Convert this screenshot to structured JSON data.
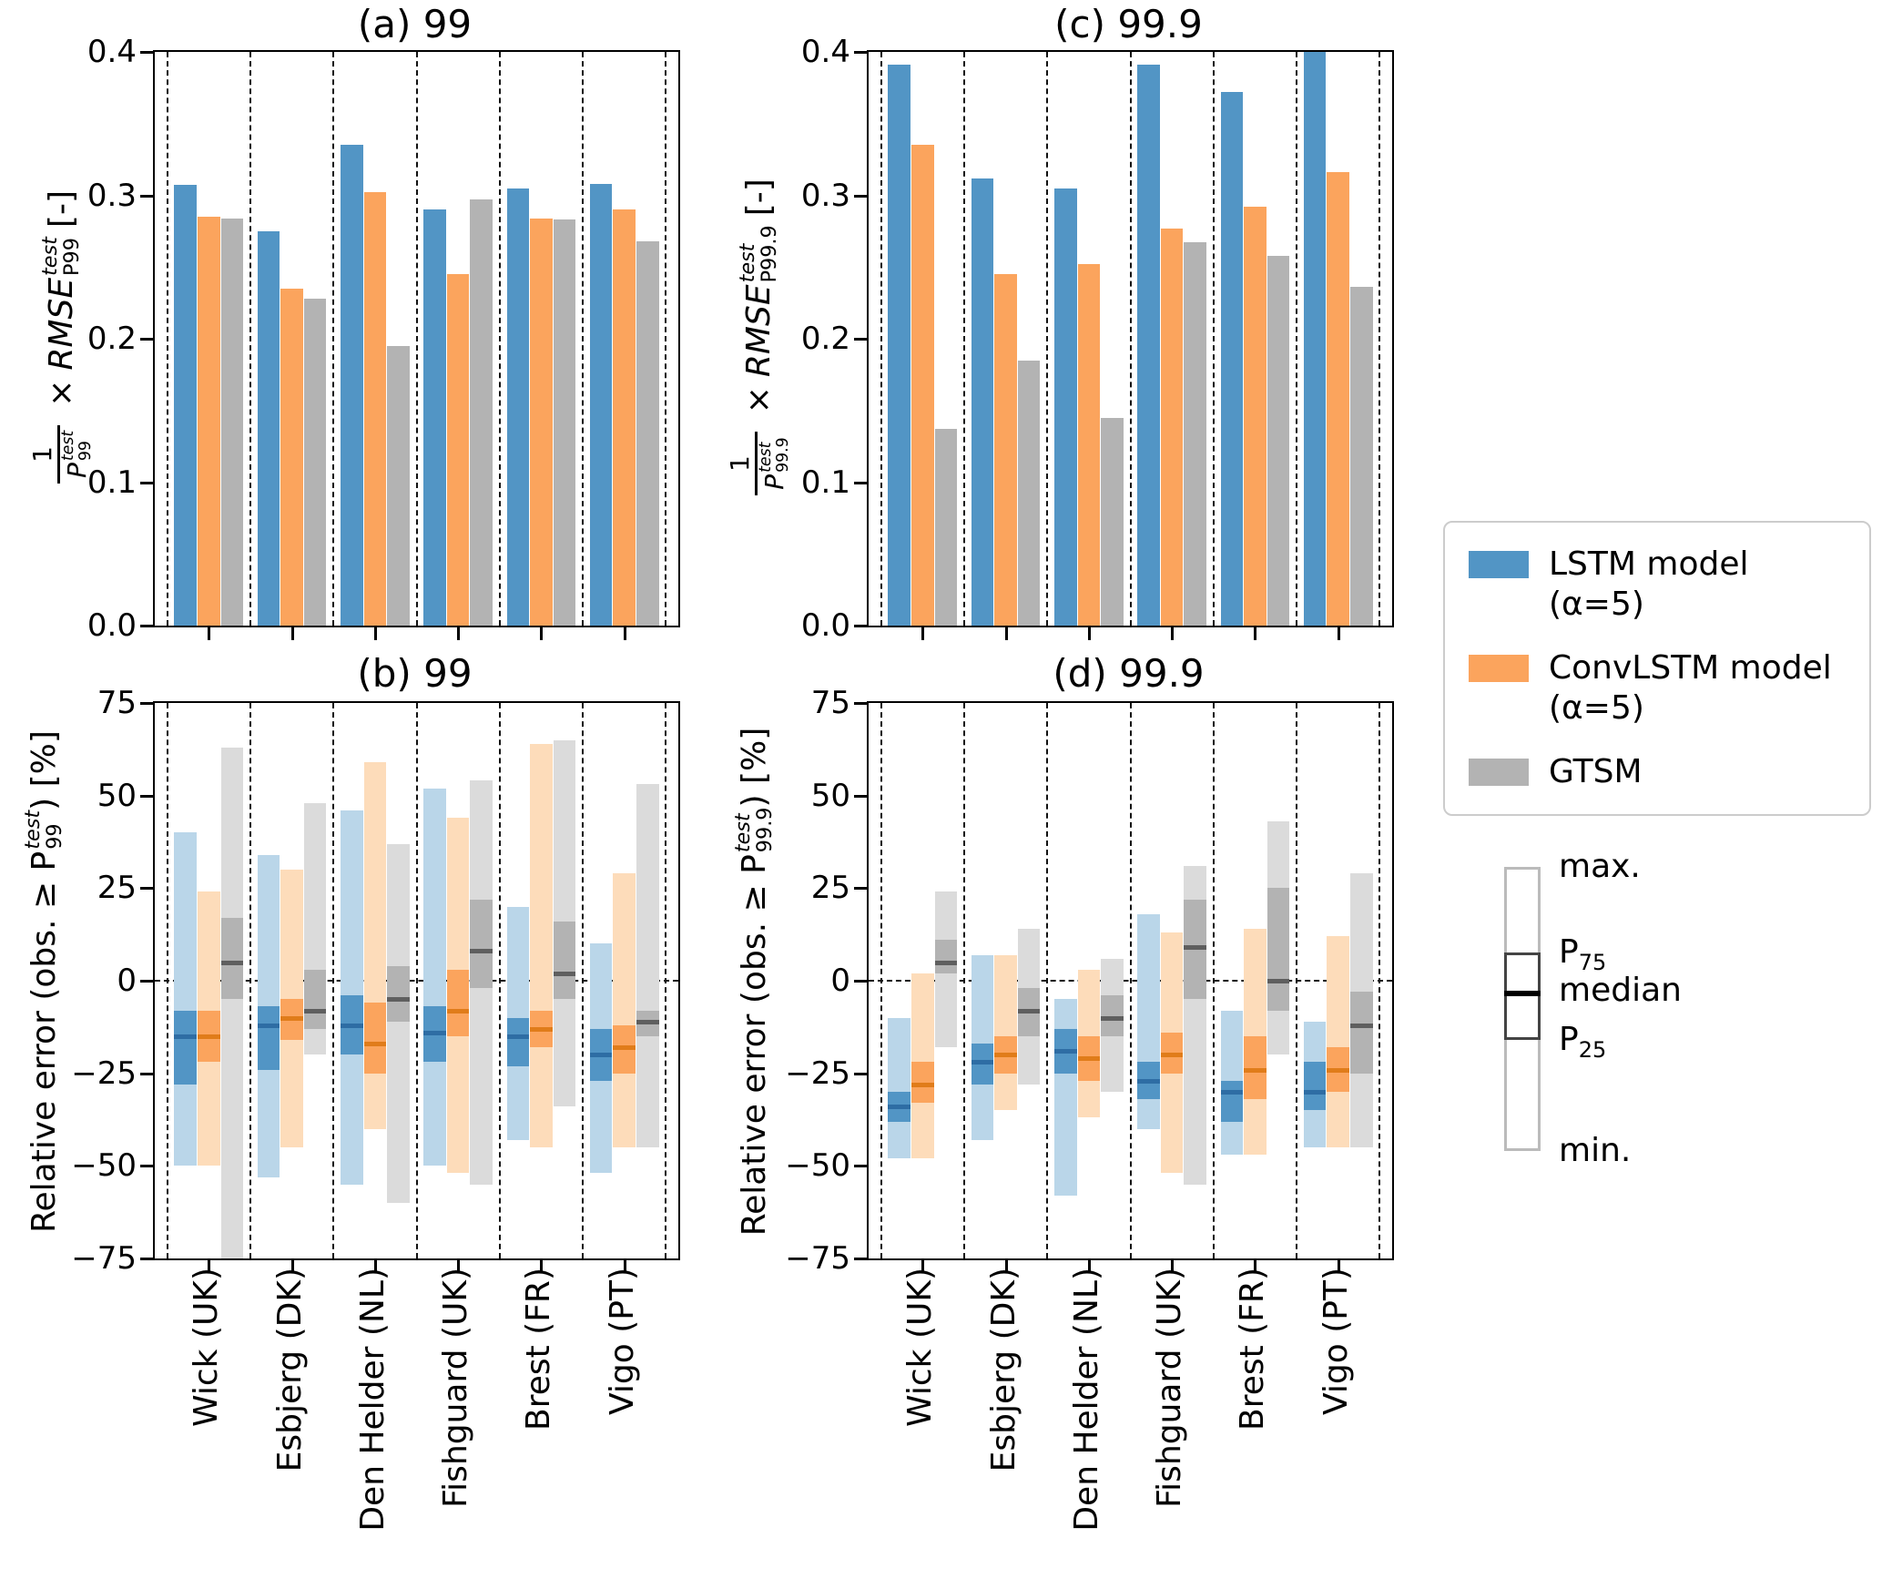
{
  "stations": [
    "Wick (UK)",
    "Esbjerg (DK)",
    "Den Helder (NL)",
    "Fishguard (UK)",
    "Brest (FR)",
    "Vigo (PT)"
  ],
  "legend": {
    "items": [
      {
        "lines": [
          "LSTM model",
          "(α=5)"
        ],
        "color": "#5295c5"
      },
      {
        "lines": [
          "ConvLSTM model",
          "(α=5)"
        ],
        "color": "#fba45d"
      },
      {
        "lines": [
          "GTSM"
        ],
        "color": "#b3b3b3"
      }
    ]
  },
  "box_legend": {
    "max_label": "max.",
    "p75_base": "P",
    "p75_sub": "75",
    "median_label": "median",
    "p25_base": "P",
    "p25_sub": "25",
    "min_label": "min."
  },
  "chart_data": [
    {
      "id": "a",
      "type": "bar",
      "title": "(a) 99",
      "ylabel": {
        "num": "1",
        "den_base": "P",
        "den_sup": "test",
        "den_sub": "99",
        "times": "×",
        "rmse": "RMSE",
        "rmse_sup": "test",
        "rmse_sub": "P99",
        "unit": "[-]"
      },
      "ylim": [
        0,
        0.4
      ],
      "yticks": [
        0,
        0.1,
        0.2,
        0.3,
        0.4
      ],
      "ytick_labels": [
        "0.0",
        "0.1",
        "0.2",
        "0.3",
        "0.4"
      ],
      "zero_line": false,
      "categories": [
        "Wick (UK)",
        "Esbjerg (DK)",
        "Den Helder (NL)",
        "Fishguard (UK)",
        "Brest (FR)",
        "Vigo (PT)"
      ],
      "series": [
        {
          "key": "lstm",
          "name": "LSTM model (α=5)",
          "color": "#5295c5",
          "values": [
            0.307,
            0.275,
            0.335,
            0.29,
            0.305,
            0.308
          ]
        },
        {
          "key": "convlstm",
          "name": "ConvLSTM model (α=5)",
          "color": "#fba45d",
          "values": [
            0.285,
            0.235,
            0.302,
            0.245,
            0.284,
            0.29
          ]
        },
        {
          "key": "gtsm",
          "name": "GTSM",
          "color": "#b3b3b3",
          "values": [
            0.284,
            0.228,
            0.195,
            0.297,
            0.283,
            0.268
          ]
        }
      ]
    },
    {
      "id": "c",
      "type": "bar",
      "title": "(c) 99.9",
      "ylabel": {
        "num": "1",
        "den_base": "P",
        "den_sup": "test",
        "den_sub": "99.9",
        "times": "×",
        "rmse": "RMSE",
        "rmse_sup": "test",
        "rmse_sub": "P99.9",
        "unit": "[-]"
      },
      "ylim": [
        0,
        0.4
      ],
      "yticks": [
        0,
        0.1,
        0.2,
        0.3,
        0.4
      ],
      "ytick_labels": [
        "0.0",
        "0.1",
        "0.2",
        "0.3",
        "0.4"
      ],
      "zero_line": false,
      "categories": [
        "Wick (UK)",
        "Esbjerg (DK)",
        "Den Helder (NL)",
        "Fishguard (UK)",
        "Brest (FR)",
        "Vigo (PT)"
      ],
      "series": [
        {
          "key": "lstm",
          "name": "LSTM model (α=5)",
          "color": "#5295c5",
          "values": [
            0.391,
            0.312,
            0.305,
            0.391,
            0.372,
            0.403
          ]
        },
        {
          "key": "convlstm",
          "name": "ConvLSTM model (α=5)",
          "color": "#fba45d",
          "values": [
            0.335,
            0.245,
            0.252,
            0.277,
            0.292,
            0.316
          ]
        },
        {
          "key": "gtsm",
          "name": "GTSM",
          "color": "#b3b3b3",
          "values": [
            0.137,
            0.185,
            0.145,
            0.267,
            0.258,
            0.236
          ]
        }
      ]
    },
    {
      "id": "b",
      "type": "box",
      "title": "(b) 99",
      "ylabel": {
        "prefix": "Relative error (obs. ≥ ",
        "p_base": "P",
        "p_sup": "test",
        "p_sub": "99",
        "suffix": ") [%]"
      },
      "ylim": [
        -75,
        75
      ],
      "yticks": [
        -75,
        -50,
        -25,
        0,
        25,
        50,
        75
      ],
      "ytick_labels": [
        "−75",
        "−50",
        "−25",
        "0",
        "25",
        "50",
        "75"
      ],
      "zero_line": true,
      "categories": [
        "Wick (UK)",
        "Esbjerg (DK)",
        "Den Helder (NL)",
        "Fishguard (UK)",
        "Brest (FR)",
        "Vigo (PT)"
      ],
      "series": [
        {
          "key": "lstm",
          "name": "LSTM model (α=5)",
          "color": "#5295c5",
          "color_light": "#bad6e9",
          "color_median": "#2e6da4",
          "boxes": [
            {
              "min": -50,
              "p25": -28,
              "med": -15,
              "p75": -8,
              "max": 40
            },
            {
              "min": -53,
              "p25": -24,
              "med": -12,
              "p75": -7,
              "max": 34
            },
            {
              "min": -55,
              "p25": -20,
              "med": -12,
              "p75": -4,
              "max": 46
            },
            {
              "min": -50,
              "p25": -22,
              "med": -14,
              "p75": -7,
              "max": 52
            },
            {
              "min": -43,
              "p25": -23,
              "med": -15,
              "p75": -10,
              "max": 20
            },
            {
              "min": -52,
              "p25": -27,
              "med": -20,
              "p75": -13,
              "max": 10
            }
          ]
        },
        {
          "key": "convlstm",
          "name": "ConvLSTM model (α=5)",
          "color": "#fba45d",
          "color_light": "#fddcba",
          "color_median": "#e07c1a",
          "boxes": [
            {
              "min": -50,
              "p25": -22,
              "med": -15,
              "p75": -8,
              "max": 24
            },
            {
              "min": -45,
              "p25": -16,
              "med": -10,
              "p75": -5,
              "max": 30
            },
            {
              "min": -40,
              "p25": -25,
              "med": -17,
              "p75": -6,
              "max": 59
            },
            {
              "min": -52,
              "p25": -15,
              "med": -8,
              "p75": 3,
              "max": 44
            },
            {
              "min": -45,
              "p25": -18,
              "med": -13,
              "p75": -8,
              "max": 64
            },
            {
              "min": -45,
              "p25": -25,
              "med": -18,
              "p75": -12,
              "max": 29
            }
          ]
        },
        {
          "key": "gtsm",
          "name": "GTSM",
          "color": "#b3b3b3",
          "color_light": "#dbdbdb",
          "color_median": "#5f5f5f",
          "boxes": [
            {
              "min": -78,
              "p25": -5,
              "med": 5,
              "p75": 17,
              "max": 63
            },
            {
              "min": -20,
              "p25": -13,
              "med": -8,
              "p75": 3,
              "max": 48
            },
            {
              "min": -60,
              "p25": -11,
              "med": -5,
              "p75": 4,
              "max": 37
            },
            {
              "min": -55,
              "p25": -2,
              "med": 8,
              "p75": 22,
              "max": 54
            },
            {
              "min": -34,
              "p25": -5,
              "med": 2,
              "p75": 16,
              "max": 65
            },
            {
              "min": -45,
              "p25": -15,
              "med": -11,
              "p75": -8,
              "max": 53
            }
          ]
        }
      ]
    },
    {
      "id": "d",
      "type": "box",
      "title": "(d) 99.9",
      "ylabel": {
        "prefix": "Relative error (obs. ≥ ",
        "p_base": "P",
        "p_sup": "test",
        "p_sub": "99.9",
        "suffix": ") [%]"
      },
      "ylim": [
        -75,
        75
      ],
      "yticks": [
        -75,
        -50,
        -25,
        0,
        25,
        50,
        75
      ],
      "ytick_labels": [
        "−75",
        "−50",
        "−25",
        "0",
        "25",
        "50",
        "75"
      ],
      "zero_line": true,
      "categories": [
        "Wick (UK)",
        "Esbjerg (DK)",
        "Den Helder (NL)",
        "Fishguard (UK)",
        "Brest (FR)",
        "Vigo (PT)"
      ],
      "series": [
        {
          "key": "lstm",
          "name": "LSTM model (α=5)",
          "color": "#5295c5",
          "color_light": "#bad6e9",
          "color_median": "#2e6da4",
          "boxes": [
            {
              "min": -48,
              "p25": -38,
              "med": -34,
              "p75": -30,
              "max": -10
            },
            {
              "min": -43,
              "p25": -28,
              "med": -22,
              "p75": -17,
              "max": 7
            },
            {
              "min": -58,
              "p25": -25,
              "med": -19,
              "p75": -13,
              "max": -5
            },
            {
              "min": -40,
              "p25": -32,
              "med": -27,
              "p75": -22,
              "max": 18
            },
            {
              "min": -47,
              "p25": -38,
              "med": -30,
              "p75": -27,
              "max": -8
            },
            {
              "min": -45,
              "p25": -35,
              "med": -30,
              "p75": -22,
              "max": -11
            }
          ]
        },
        {
          "key": "convlstm",
          "name": "ConvLSTM model (α=5)",
          "color": "#fba45d",
          "color_light": "#fddcba",
          "color_median": "#e07c1a",
          "boxes": [
            {
              "min": -48,
              "p25": -33,
              "med": -28,
              "p75": -22,
              "max": 2
            },
            {
              "min": -35,
              "p25": -25,
              "med": -20,
              "p75": -15,
              "max": 7
            },
            {
              "min": -37,
              "p25": -27,
              "med": -21,
              "p75": -15,
              "max": 3
            },
            {
              "min": -52,
              "p25": -25,
              "med": -20,
              "p75": -14,
              "max": 13
            },
            {
              "min": -47,
              "p25": -32,
              "med": -24,
              "p75": -15,
              "max": 14
            },
            {
              "min": -45,
              "p25": -30,
              "med": -24,
              "p75": -18,
              "max": 12
            }
          ]
        },
        {
          "key": "gtsm",
          "name": "GTSM",
          "color": "#b3b3b3",
          "color_light": "#dbdbdb",
          "color_median": "#5f5f5f",
          "boxes": [
            {
              "min": -18,
              "p25": 2,
              "med": 5,
              "p75": 11,
              "max": 24
            },
            {
              "min": -28,
              "p25": -15,
              "med": -8,
              "p75": -2,
              "max": 14
            },
            {
              "min": -30,
              "p25": -15,
              "med": -10,
              "p75": -4,
              "max": 6
            },
            {
              "min": -55,
              "p25": -5,
              "med": 9,
              "p75": 22,
              "max": 31
            },
            {
              "min": -20,
              "p25": -8,
              "med": 0,
              "p75": 25,
              "max": 43
            },
            {
              "min": -45,
              "p25": -25,
              "med": -12,
              "p75": -3,
              "max": 29
            }
          ]
        }
      ]
    }
  ]
}
